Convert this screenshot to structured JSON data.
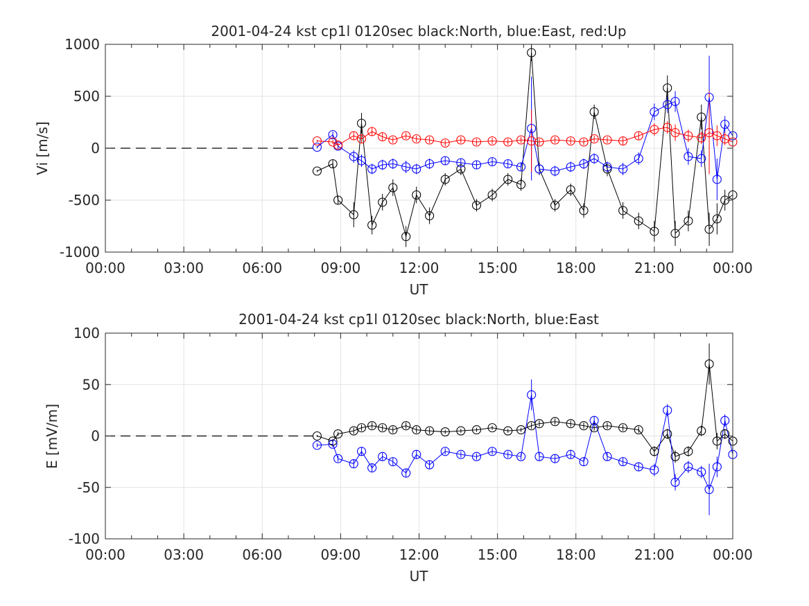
{
  "chart_data": [
    {
      "type": "scatter",
      "title": "2001-04-24 kst cp1l 0120sec black:North, blue:East, red:Up",
      "xlabel": "UT",
      "ylabel": "Vi [m/s]",
      "xlim": [
        0,
        24
      ],
      "ylim": [
        -1000,
        1000
      ],
      "xticks": [
        "00:00",
        "03:00",
        "06:00",
        "09:00",
        "12:00",
        "15:00",
        "18:00",
        "21:00",
        "00:00"
      ],
      "xtick_values": [
        0,
        3,
        6,
        9,
        12,
        15,
        18,
        21,
        24
      ],
      "yticks": [
        "-1000",
        "-500",
        "0",
        "500",
        "1000"
      ],
      "ytick_values": [
        -1000,
        -500,
        0,
        500,
        1000
      ],
      "grid": true,
      "zero_line": "dashed",
      "series": [
        {
          "color": "#000000",
          "x": [
            8.1,
            8.7,
            8.9,
            9.5,
            9.8,
            10.2,
            10.6,
            11.0,
            11.5,
            11.9,
            12.4,
            13.0,
            13.6,
            14.2,
            14.8,
            15.4,
            15.9,
            16.3,
            16.6,
            17.2,
            17.8,
            18.3,
            18.7,
            19.2,
            19.8,
            20.4,
            21.0,
            21.5,
            21.8,
            22.3,
            22.8,
            23.1,
            23.4,
            23.7,
            24.0
          ],
          "y": [
            -220,
            -150,
            -500,
            -640,
            240,
            -740,
            -520,
            -380,
            -850,
            -450,
            -650,
            -300,
            -200,
            -550,
            -450,
            -300,
            -350,
            920,
            -200,
            -550,
            -400,
            -600,
            350,
            -200,
            -600,
            -700,
            -800,
            580,
            -820,
            -700,
            300,
            -780,
            -680,
            -500,
            -450
          ],
          "errors": [
            10,
            40,
            40,
            120,
            100,
            90,
            80,
            80,
            100,
            80,
            80,
            60,
            60,
            60,
            60,
            60,
            60,
            80,
            60,
            60,
            60,
            70,
            70,
            70,
            80,
            80,
            100,
            120,
            120,
            100,
            120,
            160,
            150,
            100,
            80
          ]
        },
        {
          "color": "#0000ff",
          "x": [
            8.1,
            8.7,
            8.9,
            9.5,
            9.8,
            10.2,
            10.6,
            11.0,
            11.5,
            11.9,
            12.4,
            13.0,
            13.6,
            14.2,
            14.8,
            15.4,
            15.9,
            16.3,
            16.6,
            17.2,
            17.8,
            18.3,
            18.7,
            19.2,
            19.8,
            20.4,
            21.0,
            21.5,
            21.8,
            22.3,
            22.8,
            23.1,
            23.4,
            23.7,
            24.0
          ],
          "y": [
            10,
            130,
            20,
            -80,
            -120,
            -200,
            -160,
            -150,
            -180,
            -200,
            -150,
            -120,
            -140,
            -160,
            -130,
            -150,
            -180,
            190,
            -200,
            -220,
            -180,
            -150,
            -100,
            -180,
            -200,
            -100,
            350,
            420,
            450,
            -80,
            -100,
            490,
            -300,
            230,
            120
          ],
          "errors": [
            10,
            30,
            30,
            60,
            60,
            50,
            50,
            50,
            60,
            50,
            50,
            40,
            40,
            40,
            40,
            40,
            40,
            500,
            50,
            50,
            50,
            50,
            50,
            50,
            60,
            60,
            80,
            80,
            100,
            80,
            80,
            400,
            200,
            80,
            60
          ]
        },
        {
          "color": "#ff0000",
          "x": [
            8.1,
            8.7,
            8.9,
            9.5,
            9.8,
            10.2,
            10.6,
            11.0,
            11.5,
            11.9,
            12.4,
            13.0,
            13.6,
            14.2,
            14.8,
            15.4,
            15.9,
            16.3,
            16.6,
            17.2,
            17.8,
            18.3,
            18.7,
            19.2,
            19.8,
            20.4,
            21.0,
            21.5,
            21.8,
            22.3,
            22.8,
            23.1,
            23.4,
            23.7,
            24.0
          ],
          "y": [
            70,
            60,
            30,
            120,
            90,
            160,
            110,
            80,
            120,
            90,
            80,
            50,
            80,
            60,
            70,
            60,
            80,
            70,
            60,
            80,
            70,
            60,
            90,
            80,
            70,
            120,
            180,
            200,
            150,
            120,
            100,
            150,
            120,
            90,
            60
          ],
          "errors": [
            10,
            20,
            20,
            40,
            40,
            40,
            40,
            30,
            30,
            30,
            30,
            30,
            30,
            30,
            30,
            30,
            30,
            300,
            30,
            30,
            30,
            30,
            30,
            30,
            40,
            40,
            60,
            60,
            80,
            60,
            60,
            400,
            100,
            60,
            40
          ]
        }
      ]
    },
    {
      "type": "scatter",
      "title": "2001-04-24 kst cp1l 0120sec black:North, blue:East",
      "xlabel": "UT",
      "ylabel": "E [mV/m]",
      "xlim": [
        0,
        24
      ],
      "ylim": [
        -100,
        100
      ],
      "xticks": [
        "00:00",
        "03:00",
        "06:00",
        "09:00",
        "12:00",
        "15:00",
        "18:00",
        "21:00",
        "00:00"
      ],
      "xtick_values": [
        0,
        3,
        6,
        9,
        12,
        15,
        18,
        21,
        24
      ],
      "yticks": [
        "-100",
        "-50",
        "0",
        "50",
        "100"
      ],
      "ytick_values": [
        -100,
        -50,
        0,
        50,
        100
      ],
      "grid": true,
      "zero_line": "dashed",
      "series": [
        {
          "color": "#000000",
          "x": [
            8.1,
            8.7,
            8.9,
            9.5,
            9.8,
            10.2,
            10.6,
            11.0,
            11.5,
            11.9,
            12.4,
            13.0,
            13.6,
            14.2,
            14.8,
            15.4,
            15.9,
            16.3,
            16.6,
            17.2,
            17.8,
            18.3,
            18.7,
            19.2,
            19.8,
            20.4,
            21.0,
            21.5,
            21.8,
            22.3,
            22.8,
            23.1,
            23.4,
            23.7,
            24.0
          ],
          "y": [
            0,
            -5,
            2,
            5,
            8,
            10,
            8,
            6,
            10,
            6,
            5,
            4,
            5,
            6,
            8,
            5,
            6,
            10,
            12,
            14,
            12,
            10,
            8,
            10,
            8,
            6,
            -15,
            2,
            -20,
            -15,
            5,
            70,
            -5,
            2,
            -5
          ],
          "errors": [
            1,
            2,
            2,
            3,
            3,
            3,
            3,
            3,
            3,
            3,
            3,
            2,
            2,
            2,
            2,
            2,
            2,
            3,
            3,
            3,
            3,
            3,
            3,
            3,
            3,
            3,
            5,
            5,
            6,
            5,
            5,
            20,
            8,
            5,
            4
          ]
        },
        {
          "color": "#0000ff",
          "x": [
            8.1,
            8.7,
            8.9,
            9.5,
            9.8,
            10.2,
            10.6,
            11.0,
            11.5,
            11.9,
            12.4,
            13.0,
            13.6,
            14.2,
            14.8,
            15.4,
            15.9,
            16.3,
            16.6,
            17.2,
            17.8,
            18.3,
            18.7,
            19.2,
            19.8,
            20.4,
            21.0,
            21.5,
            21.8,
            22.3,
            22.8,
            23.1,
            23.4,
            23.7,
            24.0
          ],
          "y": [
            -9,
            -8,
            -22,
            -27,
            -15,
            -31,
            -20,
            -25,
            -36,
            -18,
            -28,
            -15,
            -18,
            -20,
            -15,
            -18,
            -20,
            40,
            -20,
            -22,
            -18,
            -25,
            15,
            -20,
            -25,
            -30,
            -33,
            25,
            -45,
            -30,
            -35,
            -52,
            -30,
            15,
            -18
          ],
          "errors": [
            2,
            3,
            3,
            4,
            4,
            4,
            4,
            4,
            4,
            4,
            4,
            3,
            3,
            3,
            3,
            3,
            3,
            15,
            4,
            4,
            4,
            4,
            4,
            4,
            4,
            4,
            6,
            6,
            8,
            6,
            6,
            25,
            10,
            6,
            5
          ]
        }
      ]
    }
  ]
}
